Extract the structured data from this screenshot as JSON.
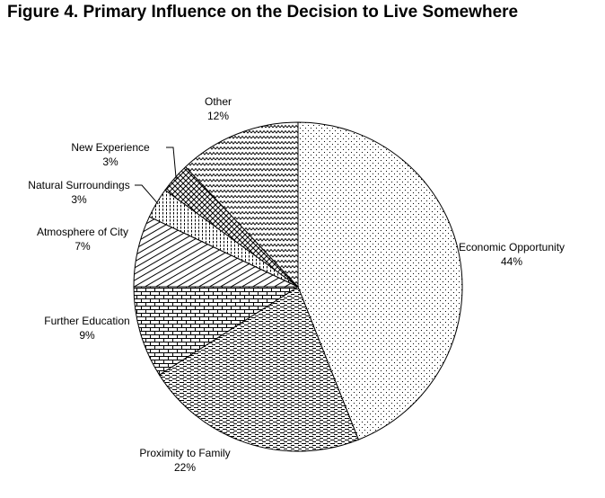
{
  "chart_data": {
    "type": "pie",
    "title": "Figure 4. Primary Influence on the Decision to Live Somewhere",
    "slices": [
      {
        "label": "Economic Opportunity",
        "value": 44,
        "value_label": "44%",
        "pattern": "dots"
      },
      {
        "label": "Proximity to Family",
        "value": 22,
        "value_label": "22%",
        "pattern": "dashes"
      },
      {
        "label": "Further Education",
        "value": 9,
        "value_label": "9%",
        "pattern": "bricks"
      },
      {
        "label": "Atmosphere of City",
        "value": 7,
        "value_label": "7%",
        "pattern": "diagonal"
      },
      {
        "label": "Natural Surroundings",
        "value": 3,
        "value_label": "3%",
        "pattern": "vertical"
      },
      {
        "label": "New Experience",
        "value": 3,
        "value_label": "3%",
        "pattern": "cross-diagonal"
      },
      {
        "label": "Other",
        "value": 12,
        "value_label": "12%",
        "pattern": "zigzag"
      }
    ],
    "start_angle_deg": 0,
    "direction": "clockwise",
    "legend": "none",
    "colors": {
      "outline": "#000000",
      "background": "#ffffff"
    }
  }
}
